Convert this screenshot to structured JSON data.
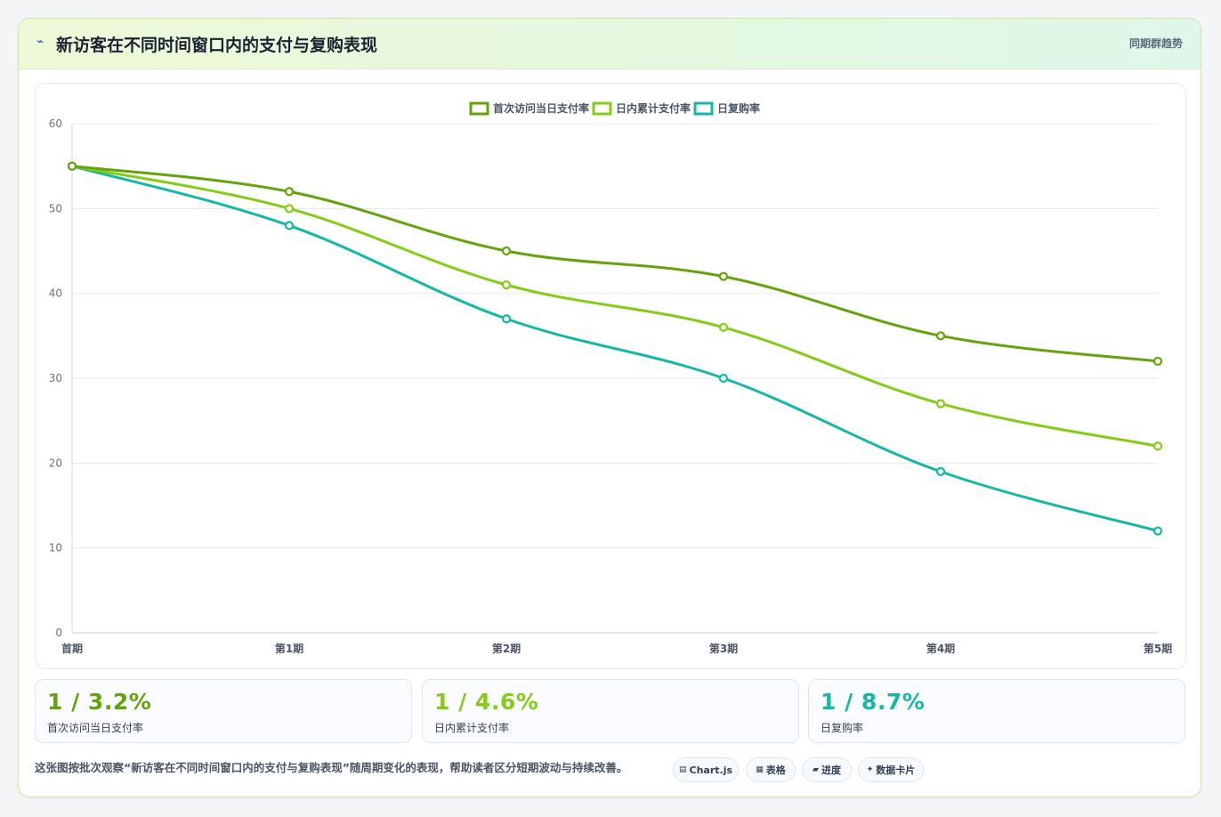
{
  "header": {
    "icon": "trend-line-icon",
    "title": "新访客在不同时间窗口内的支付与复购表现",
    "badge": "同期群趋势"
  },
  "chart_data": {
    "type": "line",
    "categories": [
      "首期",
      "第1期",
      "第2期",
      "第3期",
      "第4期",
      "第5期"
    ],
    "series": [
      {
        "name": "首次访问当日支付率",
        "color": "#65a30d",
        "values": [
          55,
          52,
          45,
          42,
          35,
          32
        ]
      },
      {
        "name": "日内累计支付率",
        "color": "#84cc16",
        "values": [
          55,
          50,
          41,
          36,
          27,
          22
        ]
      },
      {
        "name": "日复购率",
        "color": "#14b8a6",
        "values": [
          55,
          48,
          37,
          30,
          19,
          12
        ]
      }
    ],
    "ylim": [
      0,
      60
    ],
    "yticks": [
      0,
      10,
      20,
      30,
      40,
      50,
      60
    ],
    "grid": true,
    "legend": "top-center"
  },
  "kpis": [
    {
      "value": "1 / 3.2%",
      "label": "首次访问当日支付率",
      "color": "#65a30d"
    },
    {
      "value": "1 / 4.6%",
      "label": "日内累计支付率",
      "color": "#84cc16"
    },
    {
      "value": "1 / 8.7%",
      "label": "日复购率",
      "color": "#14b8a6"
    }
  ],
  "footer": {
    "description": "这张图按批次观察“新访客在不同时间窗口内的支付与复购表现”随周期变化的表现，帮助读者区分短期波动与持续改善。",
    "buttons": [
      {
        "label": "Chart.js",
        "icon": "chart-icon"
      },
      {
        "label": "表格",
        "icon": "table-icon"
      },
      {
        "label": "进度",
        "icon": "progress-icon"
      },
      {
        "label": "数据卡片",
        "icon": "sparkle-icon"
      }
    ]
  }
}
